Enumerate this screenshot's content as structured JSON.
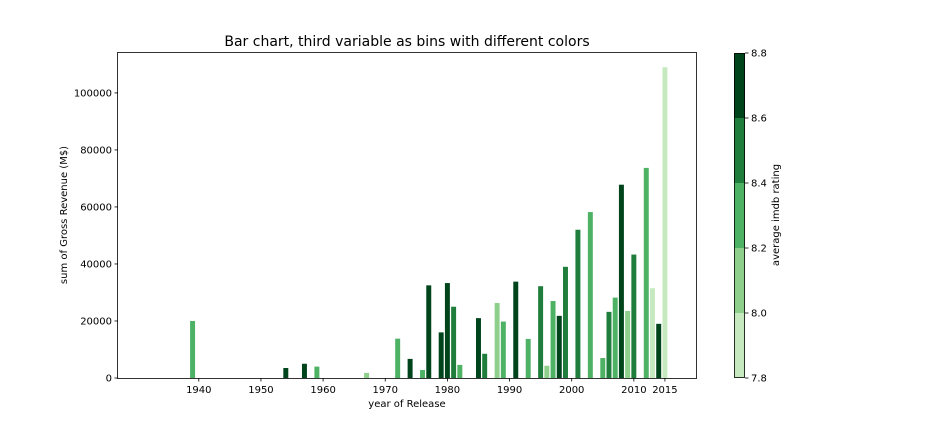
{
  "chart_data": {
    "type": "bar",
    "title": "Bar chart, third variable as bins with different colors",
    "xlabel": "year of Release",
    "ylabel": "sum of Gross Revenue (M$)",
    "xlim": [
      1927,
      2020
    ],
    "ylim": [
      0,
      114000
    ],
    "x_ticks": [
      1940,
      1950,
      1960,
      1970,
      1980,
      1990,
      2000,
      2010,
      2015
    ],
    "y_ticks": [
      0,
      20000,
      40000,
      60000,
      80000,
      100000
    ],
    "bars": [
      {
        "year": 1939,
        "value": 20000,
        "rating": 8.3
      },
      {
        "year": 1954,
        "value": 3500,
        "rating": 8.7
      },
      {
        "year": 1957,
        "value": 5000,
        "rating": 8.7
      },
      {
        "year": 1959,
        "value": 4000,
        "rating": 8.3
      },
      {
        "year": 1967,
        "value": 1800,
        "rating": 8.1
      },
      {
        "year": 1972,
        "value": 13800,
        "rating": 8.3
      },
      {
        "year": 1974,
        "value": 6700,
        "rating": 8.7
      },
      {
        "year": 1976,
        "value": 2800,
        "rating": 8.3
      },
      {
        "year": 1977,
        "value": 32500,
        "rating": 8.7
      },
      {
        "year": 1979,
        "value": 16000,
        "rating": 8.7
      },
      {
        "year": 1980,
        "value": 33300,
        "rating": 8.7
      },
      {
        "year": 1981,
        "value": 25000,
        "rating": 8.5
      },
      {
        "year": 1982,
        "value": 4600,
        "rating": 8.3
      },
      {
        "year": 1985,
        "value": 21000,
        "rating": 8.7
      },
      {
        "year": 1986,
        "value": 8500,
        "rating": 8.5
      },
      {
        "year": 1988,
        "value": 26300,
        "rating": 8.1
      },
      {
        "year": 1989,
        "value": 19800,
        "rating": 8.3
      },
      {
        "year": 1991,
        "value": 33800,
        "rating": 8.7
      },
      {
        "year": 1993,
        "value": 13700,
        "rating": 8.3
      },
      {
        "year": 1995,
        "value": 32200,
        "rating": 8.5
      },
      {
        "year": 1996,
        "value": 4300,
        "rating": 8.1
      },
      {
        "year": 1997,
        "value": 27000,
        "rating": 8.3
      },
      {
        "year": 1998,
        "value": 21800,
        "rating": 8.7
      },
      {
        "year": 1999,
        "value": 39000,
        "rating": 8.5
      },
      {
        "year": 2001,
        "value": 52000,
        "rating": 8.5
      },
      {
        "year": 2003,
        "value": 58200,
        "rating": 8.3
      },
      {
        "year": 2005,
        "value": 7000,
        "rating": 8.3
      },
      {
        "year": 2006,
        "value": 23200,
        "rating": 8.5
      },
      {
        "year": 2007,
        "value": 28200,
        "rating": 8.3
      },
      {
        "year": 2008,
        "value": 67800,
        "rating": 8.7
      },
      {
        "year": 2009,
        "value": 23500,
        "rating": 8.1
      },
      {
        "year": 2010,
        "value": 43300,
        "rating": 8.5
      },
      {
        "year": 2012,
        "value": 73700,
        "rating": 8.3
      },
      {
        "year": 2013,
        "value": 31500,
        "rating": 7.9
      },
      {
        "year": 2014,
        "value": 19000,
        "rating": 8.7
      },
      {
        "year": 2015,
        "value": 109000,
        "rating": 7.9
      }
    ],
    "colorbar": {
      "label": "average imdb rating",
      "range": [
        7.8,
        8.8
      ],
      "ticks": [
        "7.8",
        "8.0",
        "8.2",
        "8.4",
        "8.6",
        "8.8"
      ],
      "bins": [
        {
          "min": 7.8,
          "max": 8.0,
          "color": "#c7e9c0"
        },
        {
          "min": 8.0,
          "max": 8.2,
          "color": "#8ed08b"
        },
        {
          "min": 8.2,
          "max": 8.4,
          "color": "#4eb265"
        },
        {
          "min": 8.4,
          "max": 8.6,
          "color": "#1f7e3c"
        },
        {
          "min": 8.6,
          "max": 8.8,
          "color": "#00441b"
        }
      ]
    }
  }
}
